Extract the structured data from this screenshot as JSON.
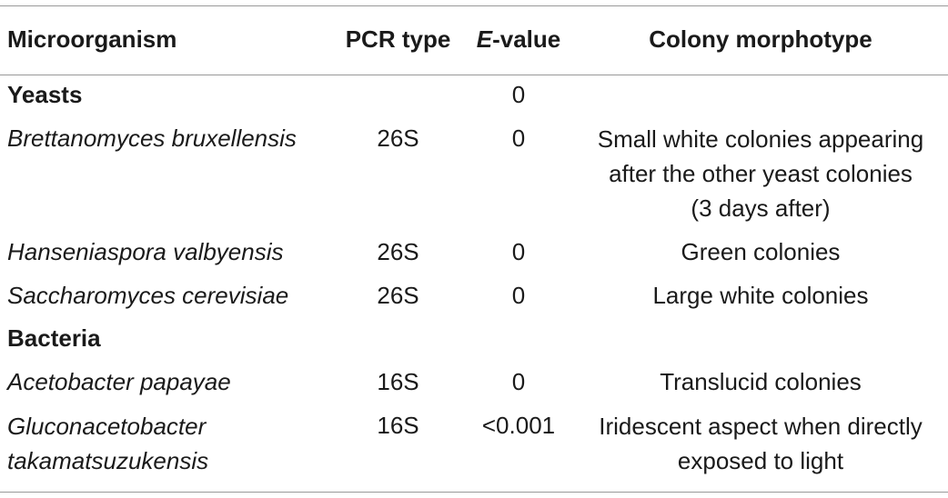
{
  "table": {
    "headers": {
      "microorganism": "Microorganism",
      "pcr_type": "PCR type",
      "evalue_italic": "E",
      "evalue_rest": "-value",
      "colony": "Colony morphotype"
    },
    "groups": [
      {
        "label": "Yeasts",
        "evalue": "0"
      },
      {
        "label": "Bacteria"
      }
    ],
    "rows": [
      {
        "name_lines": [
          "Brettanomyces bruxellensis"
        ],
        "pcr": "26S",
        "evalue": "0",
        "colony_lines": [
          "Small white colonies appearing",
          "after the other yeast colonies",
          "(3 days after)"
        ]
      },
      {
        "name_lines": [
          "Hanseniaspora valbyensis"
        ],
        "pcr": "26S",
        "evalue": "0",
        "colony_lines": [
          "Green colonies"
        ]
      },
      {
        "name_lines": [
          "Saccharomyces cerevisiae"
        ],
        "pcr": "26S",
        "evalue": "0",
        "colony_lines": [
          "Large white colonies"
        ]
      },
      {
        "name_lines": [
          "Acetobacter papayae"
        ],
        "pcr": "16S",
        "evalue": "0",
        "colony_lines": [
          "Translucid colonies"
        ]
      },
      {
        "name_lines": [
          "Gluconacetobacter",
          "takamatsuzukensis"
        ],
        "pcr": "16S",
        "evalue": "<0.001",
        "colony_lines": [
          "Iridescent aspect when directly",
          "exposed to light"
        ]
      }
    ]
  }
}
